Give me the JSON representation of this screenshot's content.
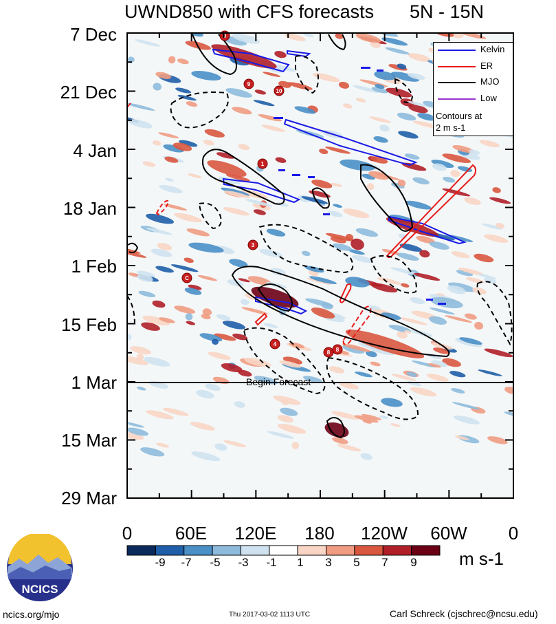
{
  "title": {
    "main": "UWND850 with CFS forecasts",
    "region": "5N - 15N"
  },
  "chart_data": {
    "type": "heatmap",
    "title": "UWND850 with CFS forecasts",
    "subtitle": "5N - 15N",
    "variable": "850 hPa zonal wind anomaly",
    "x_ticks": [
      "0",
      "60E",
      "120E",
      "180",
      "120W",
      "60W",
      "0"
    ],
    "x_range_deg_east": [
      0,
      360
    ],
    "y_ticks": [
      "7 Dec",
      "21 Dec",
      "4 Jan",
      "18 Jan",
      "1 Feb",
      "15 Feb",
      "1 Mar",
      "15 Mar",
      "29 Mar"
    ],
    "y_direction": "time increases downward",
    "forecast_start": "1 Mar",
    "forecast_label": "Begin Forecast",
    "colorbar": {
      "levels": [
        "-9",
        "-7",
        "-5",
        "-3",
        "-1",
        "1",
        "3",
        "5",
        "7",
        "9"
      ],
      "colors": [
        "#0b2a5c",
        "#1f5ea8",
        "#4a8fc6",
        "#8ebbdc",
        "#cfe2ef",
        "#ffffff",
        "#f8d5c4",
        "#ef9c82",
        "#d9573f",
        "#b01f28",
        "#6b0014"
      ],
      "unit": "m s-1"
    },
    "legend": [
      {
        "name": "Kelvin",
        "color": "#1a1ae6"
      },
      {
        "name": "ER",
        "color": "#e61a1a"
      },
      {
        "name": "MJO",
        "color": "#000000"
      },
      {
        "name": "Low",
        "color": "#9933cc"
      }
    ],
    "legend_note": [
      "Contours at",
      "2 m s-1"
    ],
    "tropical_cyclone_labels": [
      "9",
      "9",
      "10",
      "1",
      "3",
      "C",
      "4",
      "8",
      "8"
    ]
  },
  "footer": {
    "left": "ncics.org/mjo",
    "middle": "Thu 2017-03-02 1113 UTC",
    "right": "Carl Schreck (cjschrec@ncsu.edu)"
  },
  "logo": {
    "text": "NCICS"
  }
}
